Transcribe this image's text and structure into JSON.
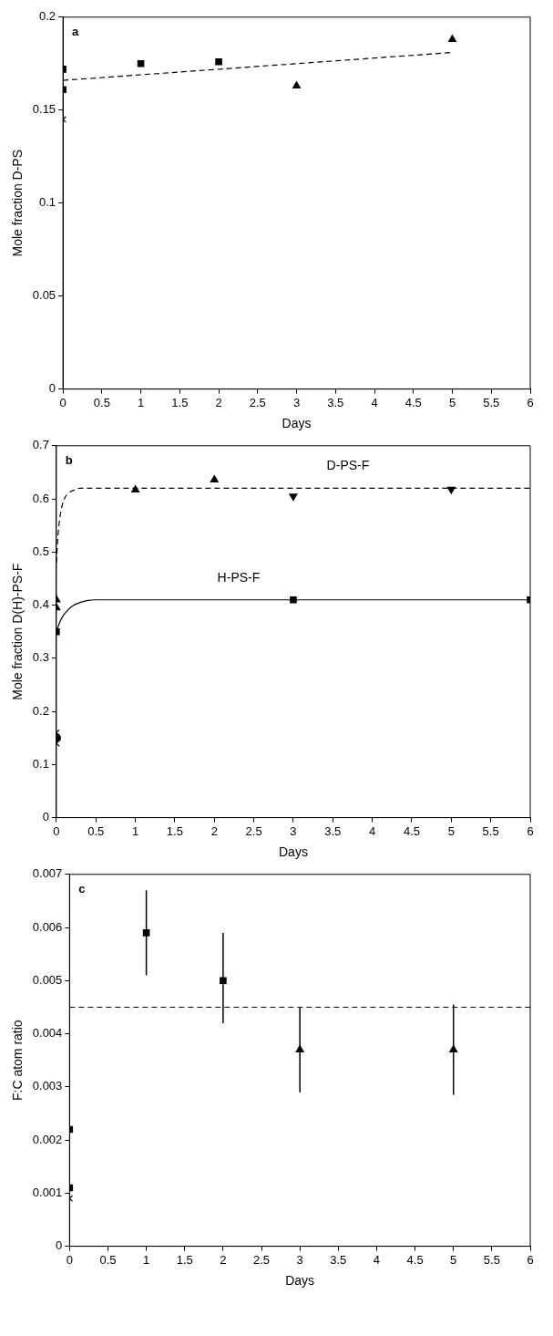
{
  "chart_data": [
    {
      "type": "scatter",
      "xlabel": "Days",
      "ylabel": "Mole fraction D-PS",
      "annotations": [
        "a"
      ],
      "xlim": [
        0,
        6
      ],
      "ylim": [
        0,
        0.2
      ],
      "xticks": [
        0,
        0.5,
        1,
        1.5,
        2,
        2.5,
        3,
        3.5,
        4,
        4.5,
        5,
        5.5,
        6
      ],
      "yticks": [
        0,
        0.05,
        0.1,
        0.15,
        0.2
      ],
      "grid": false,
      "legend": false,
      "series": [
        {
          "marker": "square",
          "color": "#000000",
          "x": [
            0,
            0,
            1,
            2
          ],
          "values": [
            0.172,
            0.161,
            0.175,
            0.176
          ]
        },
        {
          "marker": "triangle",
          "color": "#000000",
          "x": [
            3,
            5
          ],
          "values": [
            0.163,
            0.188
          ]
        },
        {
          "marker": "cross",
          "color": "#000000",
          "x": [
            0
          ],
          "values": [
            0.145
          ]
        },
        {
          "type": "line",
          "marker": "none",
          "line_style": "dashed",
          "color": "#000000",
          "x": [
            0,
            5
          ],
          "values": [
            0.166,
            0.181
          ]
        }
      ]
    },
    {
      "type": "scatter",
      "xlabel": "Days",
      "ylabel": "Mole fraction D(H)-PS-F",
      "annotations": [
        "b"
      ],
      "xlim": [
        0,
        6
      ],
      "ylim": [
        0,
        0.7
      ],
      "xticks": [
        0,
        0.5,
        1,
        1.5,
        2,
        2.5,
        3,
        3.5,
        4,
        4.5,
        5,
        5.5,
        6
      ],
      "yticks": [
        0,
        0.1,
        0.2,
        0.3,
        0.4,
        0.5,
        0.6,
        0.7
      ],
      "grid": false,
      "legend": false,
      "series": [
        {
          "type": "line",
          "name": "D-PS-F",
          "marker": "none",
          "line_style": "dashed",
          "color": "#000000",
          "x": [
            0,
            0.02,
            0.05,
            0.1,
            0.15,
            0.2,
            0.3,
            0.5,
            6
          ],
          "values": [
            0.48,
            0.53,
            0.57,
            0.6,
            0.61,
            0.615,
            0.62,
            0.62,
            0.62
          ]
        },
        {
          "type": "line",
          "name": "H-PS-F",
          "marker": "none",
          "line_style": "solid",
          "color": "#000000",
          "x": [
            0,
            0.05,
            0.1,
            0.2,
            0.3,
            0.4,
            0.5,
            6
          ],
          "values": [
            0.35,
            0.37,
            0.383,
            0.398,
            0.405,
            0.409,
            0.41,
            0.41
          ]
        },
        {
          "marker": "triangle",
          "color": "#000000",
          "x": [
            0,
            0,
            1,
            2
          ],
          "values": [
            0.41,
            0.395,
            0.617,
            0.636
          ]
        },
        {
          "marker": "triangle-down",
          "color": "#000000",
          "x": [
            3,
            5
          ],
          "values": [
            0.605,
            0.618
          ]
        },
        {
          "marker": "square",
          "color": "#000000",
          "x": [
            0,
            3,
            6
          ],
          "values": [
            0.35,
            0.41,
            0.41
          ]
        },
        {
          "marker": "cross",
          "color": "#000000",
          "x": [
            0
          ],
          "values": [
            0.16
          ]
        },
        {
          "marker": "circle",
          "color": "#000000",
          "x": [
            0
          ],
          "values": [
            0.15
          ]
        },
        {
          "marker": "cross",
          "color": "#000000",
          "x": [
            0
          ],
          "values": [
            0.14
          ]
        }
      ]
    },
    {
      "type": "scatter",
      "xlabel": "Days",
      "ylabel": "F:C atom ratio",
      "annotations": [
        "c"
      ],
      "xlim": [
        0,
        6
      ],
      "ylim": [
        0,
        0.007
      ],
      "xticks": [
        0,
        0.5,
        1,
        1.5,
        2,
        2.5,
        3,
        3.5,
        4,
        4.5,
        5,
        5.5,
        6
      ],
      "yticks": [
        0,
        0.001,
        0.002,
        0.003,
        0.004,
        0.005,
        0.006,
        0.007
      ],
      "grid": false,
      "legend": false,
      "ref_lines": [
        {
          "axis": "y",
          "value": 0.0045,
          "line_style": "dashed",
          "color": "#000000"
        }
      ],
      "series": [
        {
          "marker": "square",
          "color": "#000000",
          "x": [
            0,
            0,
            1,
            2
          ],
          "values": [
            0.0022,
            0.0011,
            0.0059,
            0.005
          ],
          "errors": [
            null,
            null,
            [
              0.0051,
              0.0067
            ],
            [
              0.0042,
              0.0059
            ]
          ]
        },
        {
          "marker": "triangle",
          "color": "#000000",
          "x": [
            3,
            5
          ],
          "values": [
            0.0037,
            0.0037
          ],
          "errors": [
            [
              0.0029,
              0.0045
            ],
            [
              0.00285,
              0.00455
            ]
          ]
        },
        {
          "marker": "cross",
          "color": "#000000",
          "x": [
            0
          ],
          "values": [
            0.0009
          ]
        }
      ]
    }
  ]
}
